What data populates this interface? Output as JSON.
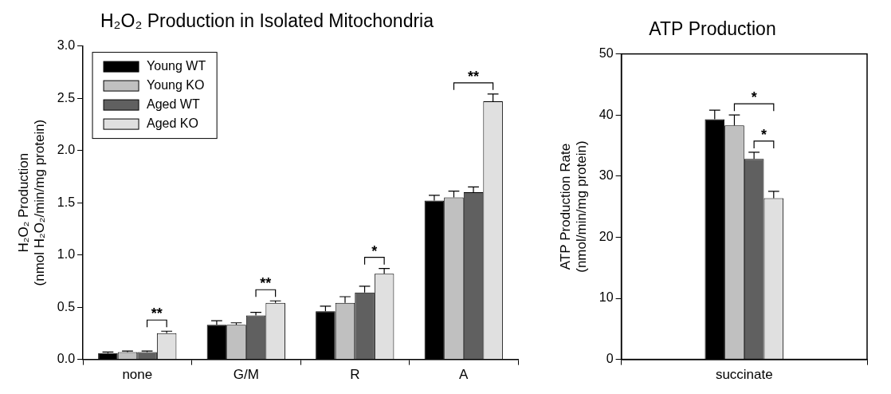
{
  "chart_data": [
    {
      "type": "bar",
      "title": "H₂O₂ Production in Isolated Mitochondria",
      "y_label": [
        "H₂O₂ Production",
        "(nmol H₂O₂/min/mg protein)"
      ],
      "categories": [
        "none",
        "G/M",
        "R",
        "A"
      ],
      "series": [
        {
          "name": "Young WT",
          "color": "#000000",
          "values": [
            0.06,
            0.33,
            0.46,
            1.52
          ],
          "errors": [
            0.01,
            0.04,
            0.05,
            0.05
          ]
        },
        {
          "name": "Young KO",
          "color": "#c0c0c0",
          "values": [
            0.07,
            0.33,
            0.54,
            1.55
          ],
          "errors": [
            0.01,
            0.02,
            0.06,
            0.06
          ]
        },
        {
          "name": "Aged WT",
          "color": "#606060",
          "values": [
            0.07,
            0.42,
            0.64,
            1.6
          ],
          "errors": [
            0.01,
            0.03,
            0.06,
            0.05
          ]
        },
        {
          "name": "Aged KO",
          "color": "#e0e0e0",
          "values": [
            0.25,
            0.54,
            0.82,
            2.47
          ],
          "errors": [
            0.02,
            0.02,
            0.05,
            0.07
          ]
        }
      ],
      "ylim": [
        0,
        3
      ],
      "yticks": [
        {
          "value": 0,
          "label": "0.0"
        },
        0.5,
        {
          "value": 1,
          "label": "1.0"
        },
        1.5,
        {
          "value": 2,
          "label": "2.0"
        },
        2.5,
        {
          "value": 3,
          "label": "3.0"
        }
      ],
      "grid": false,
      "legend": "upper left",
      "annotations": [
        {
          "category": "none",
          "from": "Aged WT",
          "to": "Aged KO",
          "text": "**"
        },
        {
          "category": "G/M",
          "from": "Aged WT",
          "to": "Aged KO",
          "text": "**"
        },
        {
          "category": "R",
          "from": "Aged WT",
          "to": "Aged KO",
          "text": "*"
        },
        {
          "category": "A",
          "from": "Young KO",
          "to": "Aged KO",
          "text": "**"
        }
      ]
    },
    {
      "type": "bar",
      "title": "ATP Production",
      "y_label": [
        "ATP Production Rate",
        "(nmol/min/mg protein)"
      ],
      "categories": [
        "succinate"
      ],
      "series": [
        {
          "name": "Young WT",
          "color": "#000000",
          "values": [
            39.3
          ],
          "errors": [
            1.5
          ]
        },
        {
          "name": "Young KO",
          "color": "#c0c0c0",
          "values": [
            38.3
          ],
          "errors": [
            1.7
          ]
        },
        {
          "name": "Aged WT",
          "color": "#606060",
          "values": [
            32.8
          ],
          "errors": [
            1.1
          ]
        },
        {
          "name": "Aged KO",
          "color": "#e0e0e0",
          "values": [
            26.4
          ],
          "errors": [
            1.1
          ]
        }
      ],
      "ylim": [
        0,
        50
      ],
      "yticks": [
        0,
        10,
        20,
        30,
        40,
        50
      ],
      "grid": false,
      "annotations": [
        {
          "category": "succinate",
          "from": "Aged WT",
          "to": "Aged KO",
          "text": "*"
        },
        {
          "category": "succinate",
          "from": "Young KO",
          "to": "Aged KO",
          "text": "*"
        }
      ]
    }
  ]
}
